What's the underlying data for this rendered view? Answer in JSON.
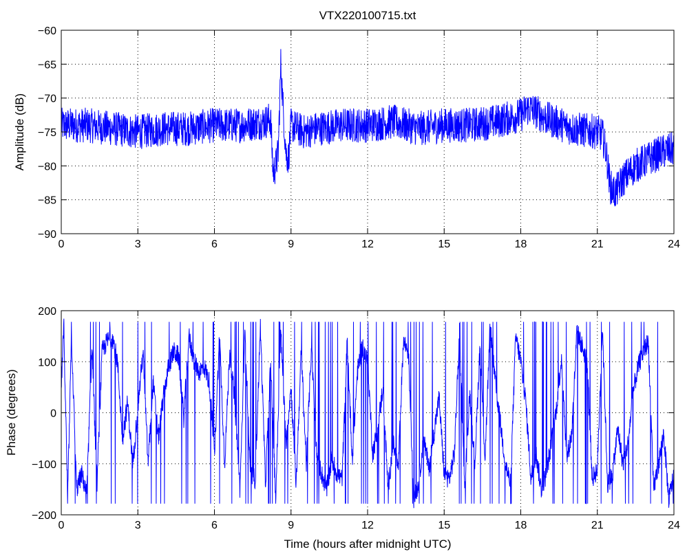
{
  "chart_data": [
    {
      "type": "line",
      "title": "VTX220100715.txt",
      "xlabel": "",
      "ylabel": "Amplitude (dB)",
      "xlim": [
        0,
        24
      ],
      "ylim": [
        -90,
        -60
      ],
      "xticks": [
        0,
        3,
        6,
        9,
        12,
        15,
        18,
        21,
        24
      ],
      "yticks": [
        -60,
        -65,
        -70,
        -75,
        -80,
        -85,
        -90
      ],
      "grid": true,
      "color": "#0000ff",
      "series": [
        {
          "x": [
            0,
            1,
            2,
            3,
            4,
            5,
            6,
            7,
            8,
            8.2,
            8.3,
            8.4,
            8.5,
            8.6,
            8.7,
            8.8,
            8.9,
            9.0,
            9.5,
            10,
            11,
            12,
            13,
            14,
            15,
            16,
            17,
            17.5,
            18,
            18.3,
            18.6,
            19,
            20,
            21,
            21.2,
            21.35,
            21.5,
            21.7,
            22,
            22.5,
            23,
            23.5,
            24
          ],
          "values": [
            -74,
            -74,
            -74.5,
            -75,
            -74.5,
            -74.5,
            -74,
            -74,
            -73.5,
            -73,
            -81,
            -80,
            -78,
            -65,
            -72,
            -78,
            -79,
            -74,
            -75,
            -74.5,
            -74,
            -74,
            -73.5,
            -74.5,
            -74,
            -74,
            -73.5,
            -73,
            -72.5,
            -71.5,
            -72,
            -73,
            -74.5,
            -75,
            -75.5,
            -78,
            -83,
            -84,
            -82,
            -80,
            -79,
            -78,
            -77.5
          ]
        }
      ]
    },
    {
      "type": "line",
      "title": "",
      "xlabel": "Time (hours after midnight UTC)",
      "ylabel": "Phase (degrees)",
      "xlim": [
        0,
        24
      ],
      "ylim": [
        -200,
        200
      ],
      "xticks": [
        0,
        3,
        6,
        9,
        12,
        15,
        18,
        21,
        24
      ],
      "yticks": [
        200,
        100,
        0,
        -100,
        -200
      ],
      "grid": true,
      "color": "#0000ff",
      "series": [
        {
          "x": [
            0,
            0.1,
            0.25,
            0.4,
            0.6,
            0.8,
            1.0,
            1.2,
            1.4,
            1.6,
            1.8,
            2.0,
            2.2,
            2.4,
            2.6,
            2.8,
            3.0,
            3.2,
            3.4,
            3.6,
            3.8,
            4.0,
            4.2,
            4.4,
            4.6,
            4.8,
            5.0,
            5.2,
            5.4,
            5.6,
            5.8,
            6.0,
            6.2,
            6.4,
            6.6,
            6.8,
            7.0,
            7.2,
            7.4,
            7.6,
            7.8,
            8.0,
            8.2,
            8.4,
            8.6,
            8.8,
            9.0,
            9.2,
            9.4,
            9.6,
            9.8,
            10.0,
            10.2,
            10.4,
            10.6,
            10.8,
            11.0,
            11.2,
            11.4,
            11.6,
            11.8,
            12.0,
            12.2,
            12.4,
            12.6,
            12.8,
            13.0,
            13.2,
            13.4,
            13.6,
            13.8,
            14.0,
            14.2,
            14.4,
            14.6,
            14.8,
            15.0,
            15.2,
            15.4,
            15.6,
            15.8,
            16.0,
            16.2,
            16.4,
            16.6,
            16.8,
            17.0,
            17.2,
            17.4,
            17.6,
            17.8,
            18.0,
            18.2,
            18.4,
            18.6,
            18.8,
            19.0,
            19.2,
            19.4,
            19.6,
            19.8,
            20.0,
            20.2,
            20.4,
            20.6,
            20.8,
            21.0,
            21.2,
            21.4,
            21.6,
            21.8,
            22.0,
            22.2,
            22.4,
            22.6,
            22.8,
            23.0,
            23.2,
            23.4,
            23.6,
            23.8,
            24.0
          ],
          "values": [
            50,
            170,
            -170,
            150,
            -150,
            -120,
            -160,
            130,
            -140,
            120,
            140,
            150,
            100,
            -50,
            20,
            -100,
            10,
            120,
            -100,
            60,
            -50,
            30,
            90,
            120,
            110,
            -10,
            150,
            100,
            80,
            90,
            60,
            -80,
            150,
            -100,
            120,
            20,
            -150,
            160,
            -120,
            -130,
            170,
            -140,
            100,
            -170,
            160,
            -60,
            50,
            -140,
            120,
            -100,
            130,
            -80,
            -120,
            -150,
            -90,
            -120,
            -130,
            140,
            -90,
            80,
            130,
            100,
            -80,
            -30,
            50,
            -150,
            -60,
            -110,
            140,
            120,
            -170,
            -140,
            -50,
            -110,
            -40,
            30,
            -120,
            -130,
            -80,
            160,
            -150,
            40,
            -100,
            130,
            -90,
            170,
            60,
            -20,
            -100,
            -140,
            150,
            100,
            20,
            -130,
            -80,
            -150,
            -120,
            -60,
            10,
            110,
            -90,
            -40,
            160,
            130,
            100,
            -130,
            -110,
            170,
            -140,
            -120,
            -30,
            -100,
            -60,
            40,
            90,
            120,
            140,
            -150,
            -100,
            -40,
            -170,
            -120
          ]
        }
      ]
    }
  ]
}
